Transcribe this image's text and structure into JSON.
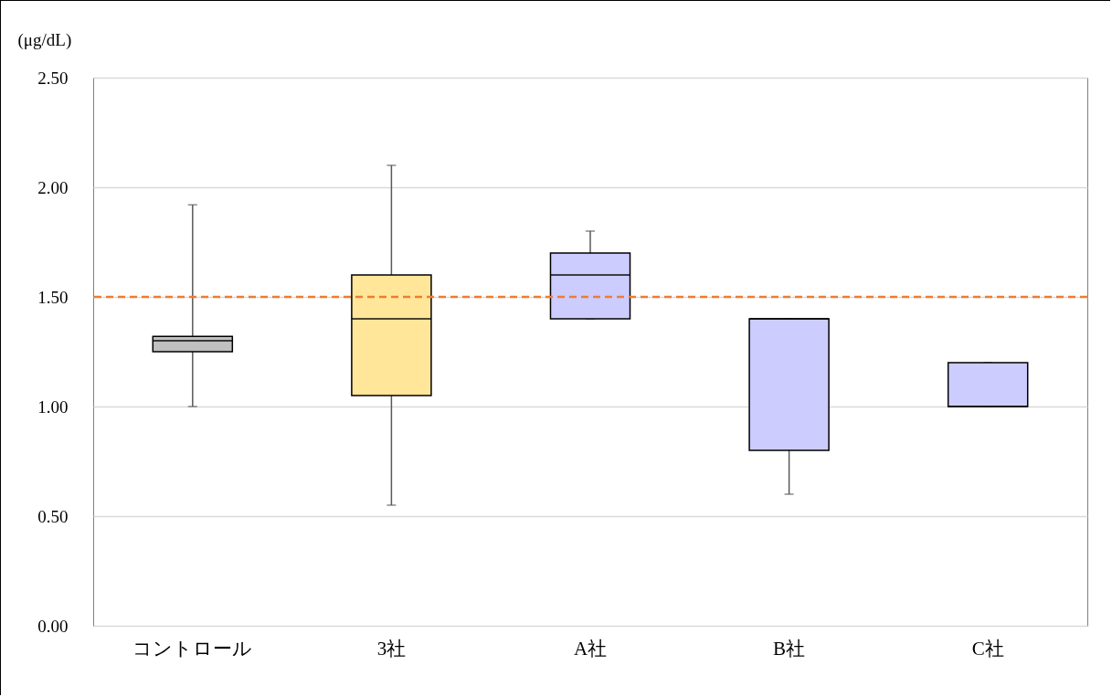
{
  "chart_data": {
    "type": "box",
    "ylabel": "(μg/dL)",
    "categories": [
      "コントロール",
      "3社",
      "A社",
      "B社",
      "C社"
    ],
    "boxes": [
      {
        "low": 1.0,
        "q1": 1.25,
        "median": 1.3,
        "q3": 1.32,
        "high": 1.92
      },
      {
        "low": 0.55,
        "q1": 1.05,
        "median": 1.4,
        "q3": 1.6,
        "high": 2.1
      },
      {
        "low": 1.4,
        "q1": 1.4,
        "median": 1.6,
        "q3": 1.7,
        "high": 1.8
      },
      {
        "low": 0.6,
        "q1": 0.8,
        "median": 1.4,
        "q3": 1.4,
        "high": 1.4
      },
      {
        "low": 1.0,
        "q1": 1.0,
        "median": 1.0,
        "q3": 1.2,
        "high": 1.2
      }
    ],
    "colors": [
      "#c0c0c0",
      "#ffe699",
      "#ccccff",
      "#ccccff",
      "#ccccff"
    ],
    "ylim": [
      0,
      2.5
    ],
    "yticks": [
      {
        "value": 0,
        "label": "0.00"
      },
      {
        "value": 0.5,
        "label": "0.50"
      },
      {
        "value": 1,
        "label": "1.00"
      },
      {
        "value": 1.5,
        "label": "1.50"
      },
      {
        "value": 2,
        "label": "2.00"
      },
      {
        "value": 2.5,
        "label": "2.50"
      }
    ],
    "grid": "y",
    "ref_lines": [
      {
        "axis": "y",
        "value": 1.5,
        "color": "#ed7d31",
        "line_style": "dashed"
      }
    ]
  }
}
